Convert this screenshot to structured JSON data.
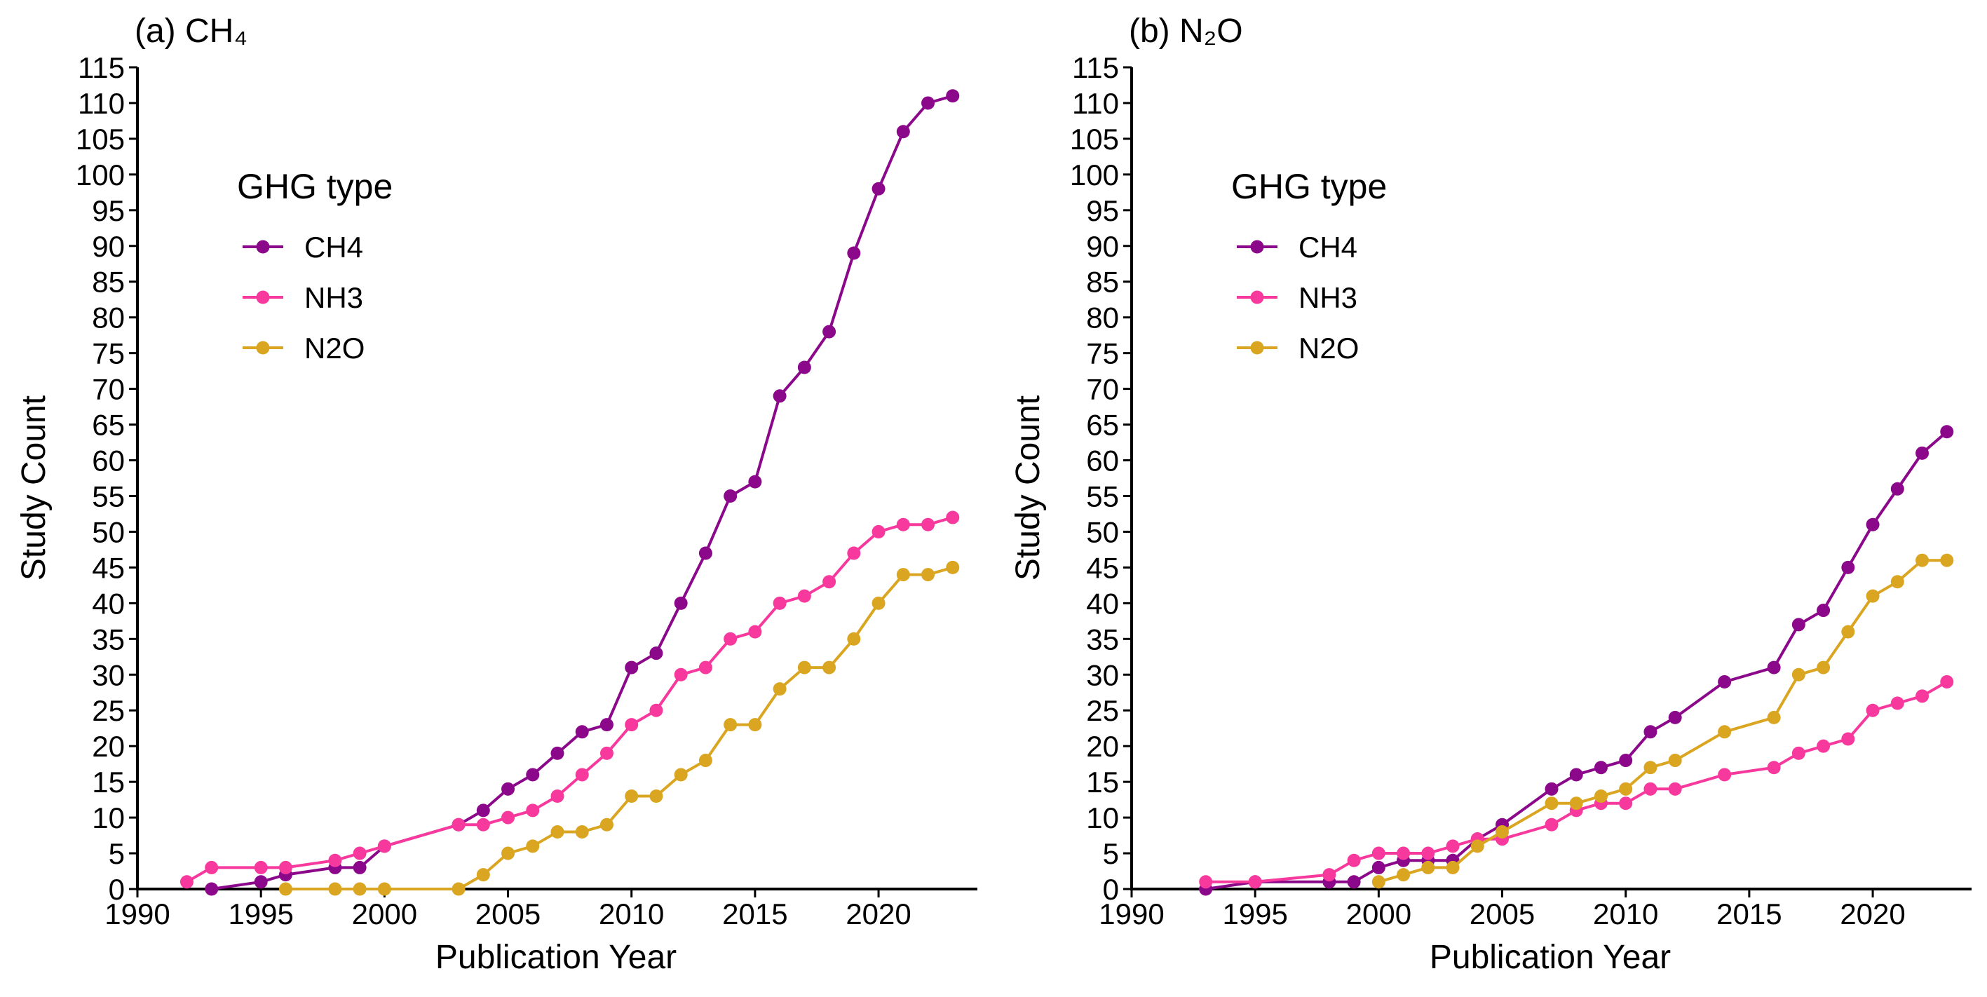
{
  "chart_data": [
    {
      "type": "line",
      "title": "(a) CH₄",
      "xlabel": "Publication Year",
      "ylabel": "Study Count",
      "xlim": [
        1990,
        2024
      ],
      "ylim": [
        0,
        115
      ],
      "xticks": [
        1990,
        1995,
        2000,
        2005,
        2010,
        2015,
        2020
      ],
      "yticks": [
        0,
        5,
        10,
        15,
        20,
        25,
        30,
        35,
        40,
        45,
        50,
        55,
        60,
        65,
        70,
        75,
        80,
        85,
        90,
        95,
        100,
        105,
        110,
        115
      ],
      "grid": false,
      "legend": {
        "title": "GHG type",
        "placement": "top-left"
      },
      "series": [
        {
          "name": "CH4",
          "color": "#8B088B",
          "x": [
            1993,
            1995,
            1996,
            1998,
            1999,
            2000,
            2003,
            2004,
            2005,
            2006,
            2007,
            2008,
            2009,
            2010,
            2011,
            2012,
            2013,
            2014,
            2015,
            2016,
            2017,
            2018,
            2019,
            2020,
            2021,
            2022,
            2023
          ],
          "y": [
            0,
            1,
            2,
            3,
            3,
            6,
            9,
            11,
            14,
            16,
            19,
            22,
            23,
            31,
            33,
            40,
            47,
            55,
            57,
            69,
            73,
            78,
            89,
            98,
            106,
            110,
            111
          ]
        },
        {
          "name": "NH3",
          "color": "#F7399E",
          "x": [
            1992,
            1993,
            1995,
            1996,
            1998,
            1999,
            2000,
            2003,
            2004,
            2005,
            2006,
            2007,
            2008,
            2009,
            2010,
            2011,
            2012,
            2013,
            2014,
            2015,
            2016,
            2017,
            2018,
            2019,
            2020,
            2021,
            2022,
            2023
          ],
          "y": [
            1,
            3,
            3,
            3,
            4,
            5,
            6,
            9,
            9,
            10,
            11,
            13,
            16,
            19,
            23,
            25,
            30,
            31,
            35,
            36,
            40,
            41,
            43,
            47,
            50,
            51,
            51,
            52
          ]
        },
        {
          "name": "N2O",
          "color": "#DAA520",
          "x": [
            1996,
            1998,
            1999,
            2000,
            2003,
            2004,
            2005,
            2006,
            2007,
            2008,
            2009,
            2010,
            2011,
            2012,
            2013,
            2014,
            2015,
            2016,
            2017,
            2018,
            2019,
            2020,
            2021,
            2022,
            2023
          ],
          "y": [
            0,
            0,
            0,
            0,
            0,
            2,
            5,
            6,
            8,
            8,
            9,
            13,
            13,
            16,
            18,
            23,
            23,
            28,
            31,
            31,
            35,
            40,
            44,
            44,
            45
          ]
        }
      ]
    },
    {
      "type": "line",
      "title": "(b) N₂O",
      "xlabel": "Publication Year",
      "ylabel": "Study Count",
      "xlim": [
        1990,
        2024
      ],
      "ylim": [
        0,
        115
      ],
      "xticks": [
        1990,
        1995,
        2000,
        2005,
        2010,
        2015,
        2020
      ],
      "yticks": [
        0,
        5,
        10,
        15,
        20,
        25,
        30,
        35,
        40,
        45,
        50,
        55,
        60,
        65,
        70,
        75,
        80,
        85,
        90,
        95,
        100,
        105,
        110,
        115
      ],
      "grid": false,
      "legend": {
        "title": "GHG type",
        "placement": "top-left"
      },
      "series": [
        {
          "name": "CH4",
          "color": "#8B088B",
          "x": [
            1993,
            1995,
            1998,
            1999,
            2000,
            2001,
            2002,
            2003,
            2004,
            2005,
            2007,
            2008,
            2009,
            2010,
            2011,
            2012,
            2014,
            2016,
            2017,
            2018,
            2019,
            2020,
            2021,
            2022,
            2023
          ],
          "y": [
            0,
            1,
            1,
            1,
            3,
            4,
            4,
            4,
            7,
            9,
            14,
            16,
            17,
            18,
            22,
            24,
            29,
            31,
            37,
            39,
            45,
            51,
            56,
            61,
            64
          ]
        },
        {
          "name": "NH3",
          "color": "#F7399E",
          "x": [
            1993,
            1995,
            1998,
            1999,
            2000,
            2001,
            2002,
            2003,
            2004,
            2005,
            2007,
            2008,
            2009,
            2010,
            2011,
            2012,
            2014,
            2016,
            2017,
            2018,
            2019,
            2020,
            2021,
            2022,
            2023
          ],
          "y": [
            1,
            1,
            2,
            4,
            5,
            5,
            5,
            6,
            7,
            7,
            9,
            11,
            12,
            12,
            14,
            14,
            16,
            17,
            19,
            20,
            21,
            25,
            26,
            27,
            29
          ]
        },
        {
          "name": "N2O",
          "color": "#DAA520",
          "x": [
            2000,
            2001,
            2002,
            2003,
            2004,
            2005,
            2007,
            2008,
            2009,
            2010,
            2011,
            2012,
            2014,
            2016,
            2017,
            2018,
            2019,
            2020,
            2021,
            2022,
            2023
          ],
          "y": [
            1,
            2,
            3,
            3,
            6,
            8,
            12,
            12,
            13,
            14,
            17,
            18,
            22,
            24,
            30,
            31,
            36,
            41,
            43,
            46,
            46
          ]
        }
      ]
    }
  ]
}
